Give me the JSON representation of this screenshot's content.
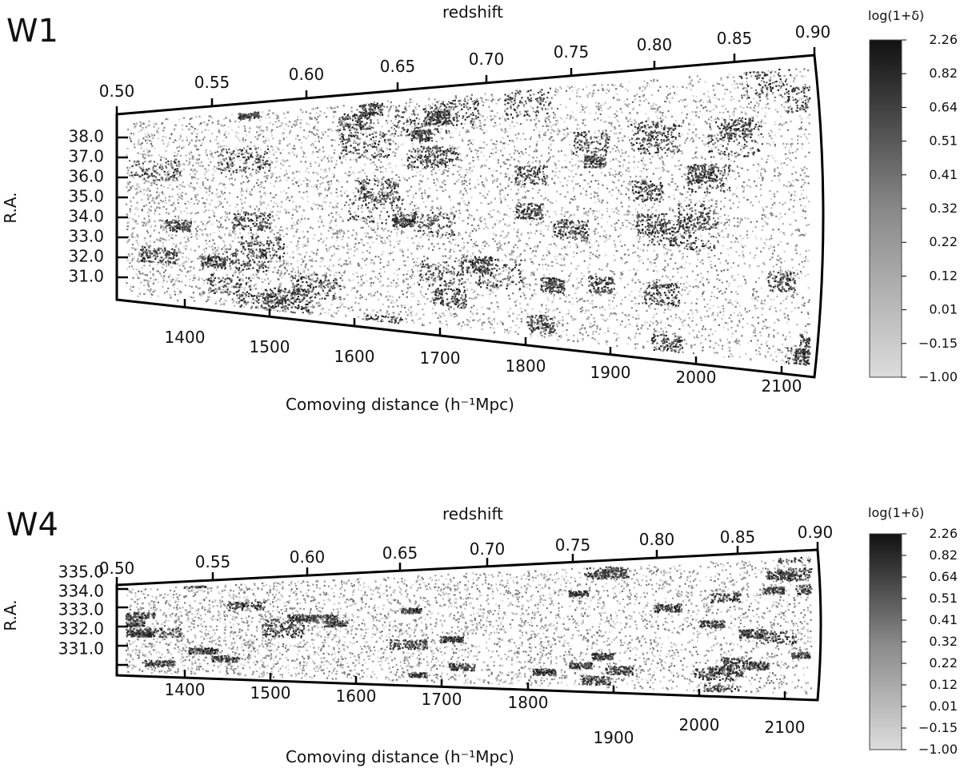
{
  "panels": [
    {
      "id": "W1",
      "label": "W1",
      "top_axis_label": "redshift",
      "bottom_axis_label": "Comoving distance (h⁻¹Mpc)",
      "left_axis_label": "R.A.",
      "redshift_ticks": [
        "0.50",
        "0.55",
        "0.60",
        "0.65",
        "0.70",
        "0.75",
        "0.80",
        "0.85",
        "0.90"
      ],
      "distance_ticks": [
        "1400",
        "1500",
        "1600",
        "1700",
        "1800",
        "1900",
        "2000",
        "2100"
      ],
      "ra_ticks": [
        "38.0",
        "37.0",
        "36.0",
        "35.0",
        "34.0",
        "33.0",
        "32.0",
        "31.0"
      ],
      "colorbar_title": "log(1+δ)",
      "colorbar_ticks": [
        "2.26",
        "0.82",
        "0.64",
        "0.51",
        "0.41",
        "0.32",
        "0.22",
        "0.12",
        "0.01",
        "−0.15",
        "−1.00"
      ]
    },
    {
      "id": "W4",
      "label": "W4",
      "top_axis_label": "redshift",
      "bottom_axis_label": "Comoving distance (h⁻¹Mpc)",
      "left_axis_label": "R.A.",
      "redshift_ticks": [
        "0.50",
        "0.55",
        "0.60",
        "0.65",
        "0.70",
        "0.75",
        "0.80",
        "0.85",
        "0.90"
      ],
      "distance_ticks": [
        "1400",
        "1500",
        "1600",
        "1700",
        "1800",
        "1900",
        "2000",
        "2100"
      ],
      "ra_ticks": [
        "335.0",
        "334.0",
        "333.0",
        "332.0",
        "331.0"
      ],
      "colorbar_title": "log(1+δ)",
      "colorbar_ticks": [
        "2.26",
        "0.82",
        "0.64",
        "0.51",
        "0.41",
        "0.32",
        "0.22",
        "0.12",
        "0.01",
        "−0.15",
        "−1.00"
      ]
    }
  ]
}
